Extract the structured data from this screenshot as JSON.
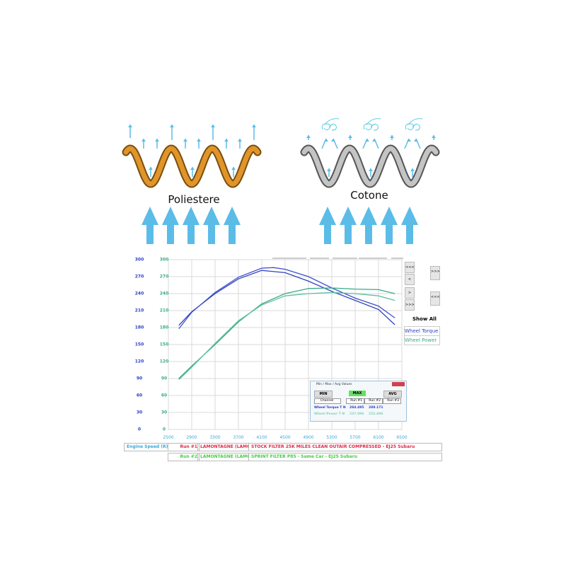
{
  "diagram": {
    "left_label": "Poliestere",
    "right_label": "Cotone",
    "left_color": "#e0952a",
    "right_color": "#c4c4c4",
    "arrow_color": "#5bbce8"
  },
  "side_panel": {
    "show_all": "Show All",
    "channels": [
      "Wheel Torque",
      "Wheel Power"
    ],
    "buttons": [
      "<<<",
      "<",
      ">",
      ">>>"
    ]
  },
  "legend": {
    "channel": "Engine Speed (R)",
    "runs": [
      {
        "run": "Run #1",
        "name": "LAMONTAGNE (LAMC",
        "desc": "STOCK FILTER 25K MILES CLEAN OUTAIR COMPRESSED - EJ25 Subaru",
        "color": "#e0284a"
      },
      {
        "run": "Run #2",
        "name": "LAMONTAGNE (LAMC",
        "desc": "SPRINT FILTER P85 - Same Car - EJ25 Subaru",
        "color": "#44cc44"
      }
    ]
  },
  "popup": {
    "title": "Min / Max / Avg Values",
    "min": "MIN",
    "max": "MAX",
    "avg": "AVG",
    "headers": [
      "Channel",
      "Run #1",
      "Run #2",
      "Run #3"
    ],
    "rows": [
      {
        "channel": "Wheel Torque T N",
        "run1": "284.495",
        "run2": "289.171"
      },
      {
        "channel": "Wheel Power T N",
        "run1": "237.996",
        "run2": "252.496"
      }
    ]
  },
  "chart_data": {
    "type": "line",
    "xlim": [
      2500,
      6500
    ],
    "ylim": [
      0,
      300
    ],
    "grid": true,
    "x_ticks": [
      "2500",
      "2900",
      "3300",
      "3700",
      "4100",
      "4500",
      "4900",
      "5300",
      "5700",
      "6100",
      "6500"
    ],
    "y_ticks_left": [
      "300",
      "270",
      "240",
      "210",
      "180",
      "150",
      "120",
      "90",
      "60",
      "30",
      "0"
    ],
    "y_ticks_right": [
      "300",
      "270",
      "240",
      "210",
      "180",
      "150",
      "120",
      "90",
      "60",
      "30",
      "0"
    ],
    "series": [
      {
        "channel": "Wheel Torque",
        "color": "#3040c0",
        "points": [
          [
            2680,
            184
          ],
          [
            2900,
            208
          ],
          [
            3300,
            240
          ],
          [
            3700,
            266
          ],
          [
            4100,
            281
          ],
          [
            4500,
            277
          ],
          [
            4900,
            262
          ],
          [
            5300,
            244
          ],
          [
            5700,
            228
          ],
          [
            6100,
            212
          ],
          [
            6380,
            185
          ]
        ]
      },
      {
        "channel": "Wheel Torque",
        "color": "#4050c8",
        "points": [
          [
            2680,
            178
          ],
          [
            2900,
            207
          ],
          [
            3300,
            242
          ],
          [
            3700,
            269
          ],
          [
            4100,
            285
          ],
          [
            4300,
            286
          ],
          [
            4500,
            283
          ],
          [
            4900,
            270
          ],
          [
            5300,
            250
          ],
          [
            5700,
            232
          ],
          [
            6100,
            218
          ],
          [
            6380,
            197
          ]
        ]
      },
      {
        "channel": "Wheel Power",
        "color": "#3aa88a",
        "points": [
          [
            2680,
            90
          ],
          [
            2900,
            112
          ],
          [
            3300,
            150
          ],
          [
            3700,
            190
          ],
          [
            4100,
            222
          ],
          [
            4500,
            240
          ],
          [
            4900,
            249
          ],
          [
            5300,
            250
          ],
          [
            5700,
            248
          ],
          [
            6100,
            247
          ],
          [
            6380,
            240
          ]
        ]
      },
      {
        "channel": "Wheel Power",
        "color": "#5cc0a0",
        "points": [
          [
            2680,
            88
          ],
          [
            2900,
            110
          ],
          [
            3300,
            152
          ],
          [
            3700,
            192
          ],
          [
            4100,
            220
          ],
          [
            4500,
            236
          ],
          [
            4900,
            240
          ],
          [
            5300,
            242
          ],
          [
            5700,
            240
          ],
          [
            6100,
            236
          ],
          [
            6380,
            228
          ]
        ]
      }
    ]
  }
}
